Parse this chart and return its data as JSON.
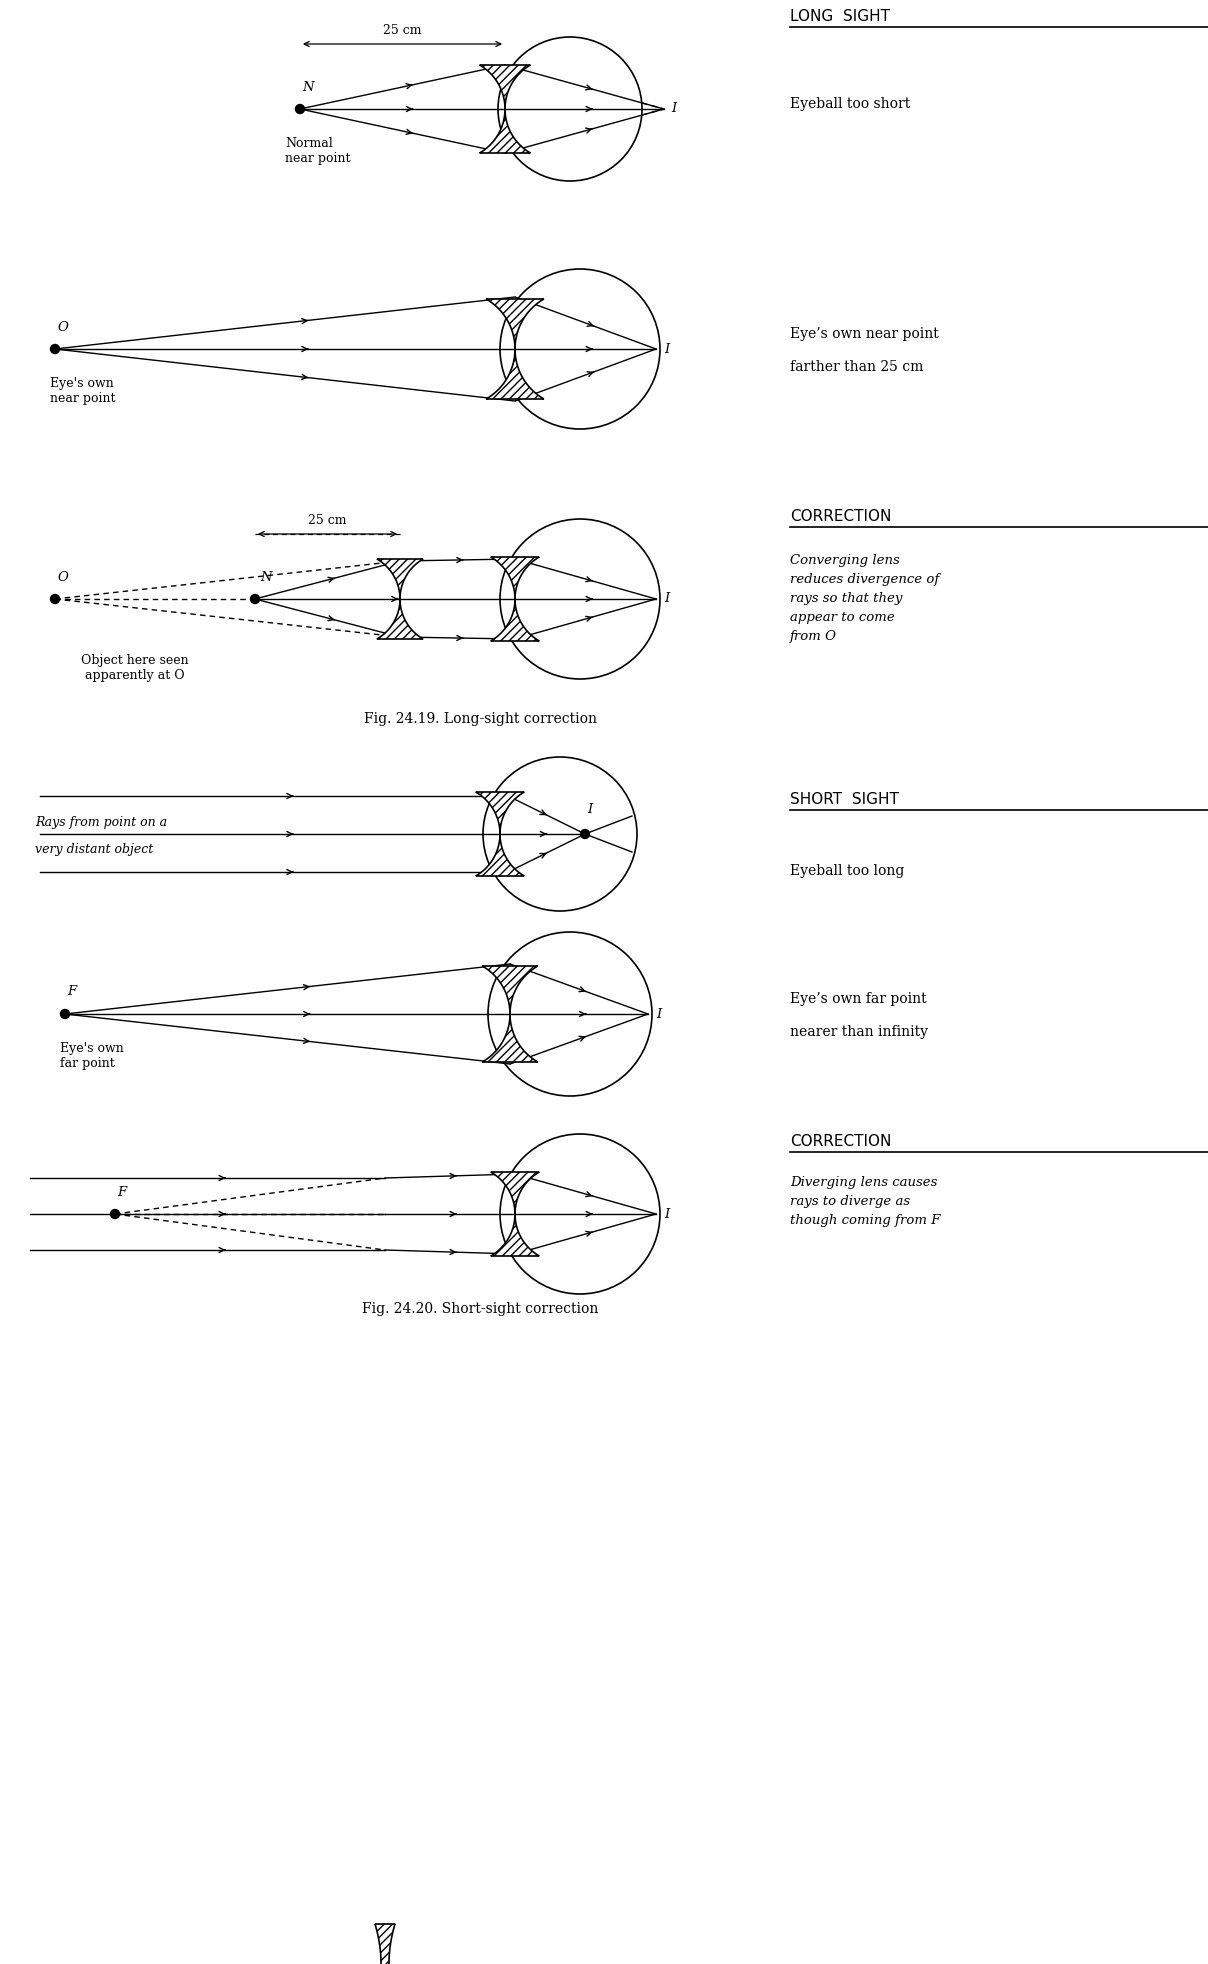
{
  "bg_color": "#ffffff",
  "fig_caption_1": "Fig. 24.19. Long-sight correction",
  "fig_caption_2": "Fig. 24.20. Short-sight correction",
  "section_titles": {
    "long_sight": "LONG  SIGHT",
    "correction1": "CORRECTION",
    "short_sight": "SHORT  SIGHT",
    "correction2": "CORRECTION"
  },
  "right_texts": {
    "s1": "Eyeball too short",
    "s2_line1": "Eye’s own near point",
    "s2_line2": "farther than 25 cm",
    "s3_line1": "Converging lens",
    "s3_line2": "reduces divergence of",
    "s3_line3": "rays so that they",
    "s3_line4": "appear to come",
    "s3_line5": "from O",
    "s4": "Eyeball too long",
    "s5_line1": "Eye’s own far point",
    "s5_line2": "nearer than infinity",
    "s6_line1": "Diverging lens causes",
    "s6_line2": "rays to diverge as",
    "s6_line3": "though coming from F"
  }
}
